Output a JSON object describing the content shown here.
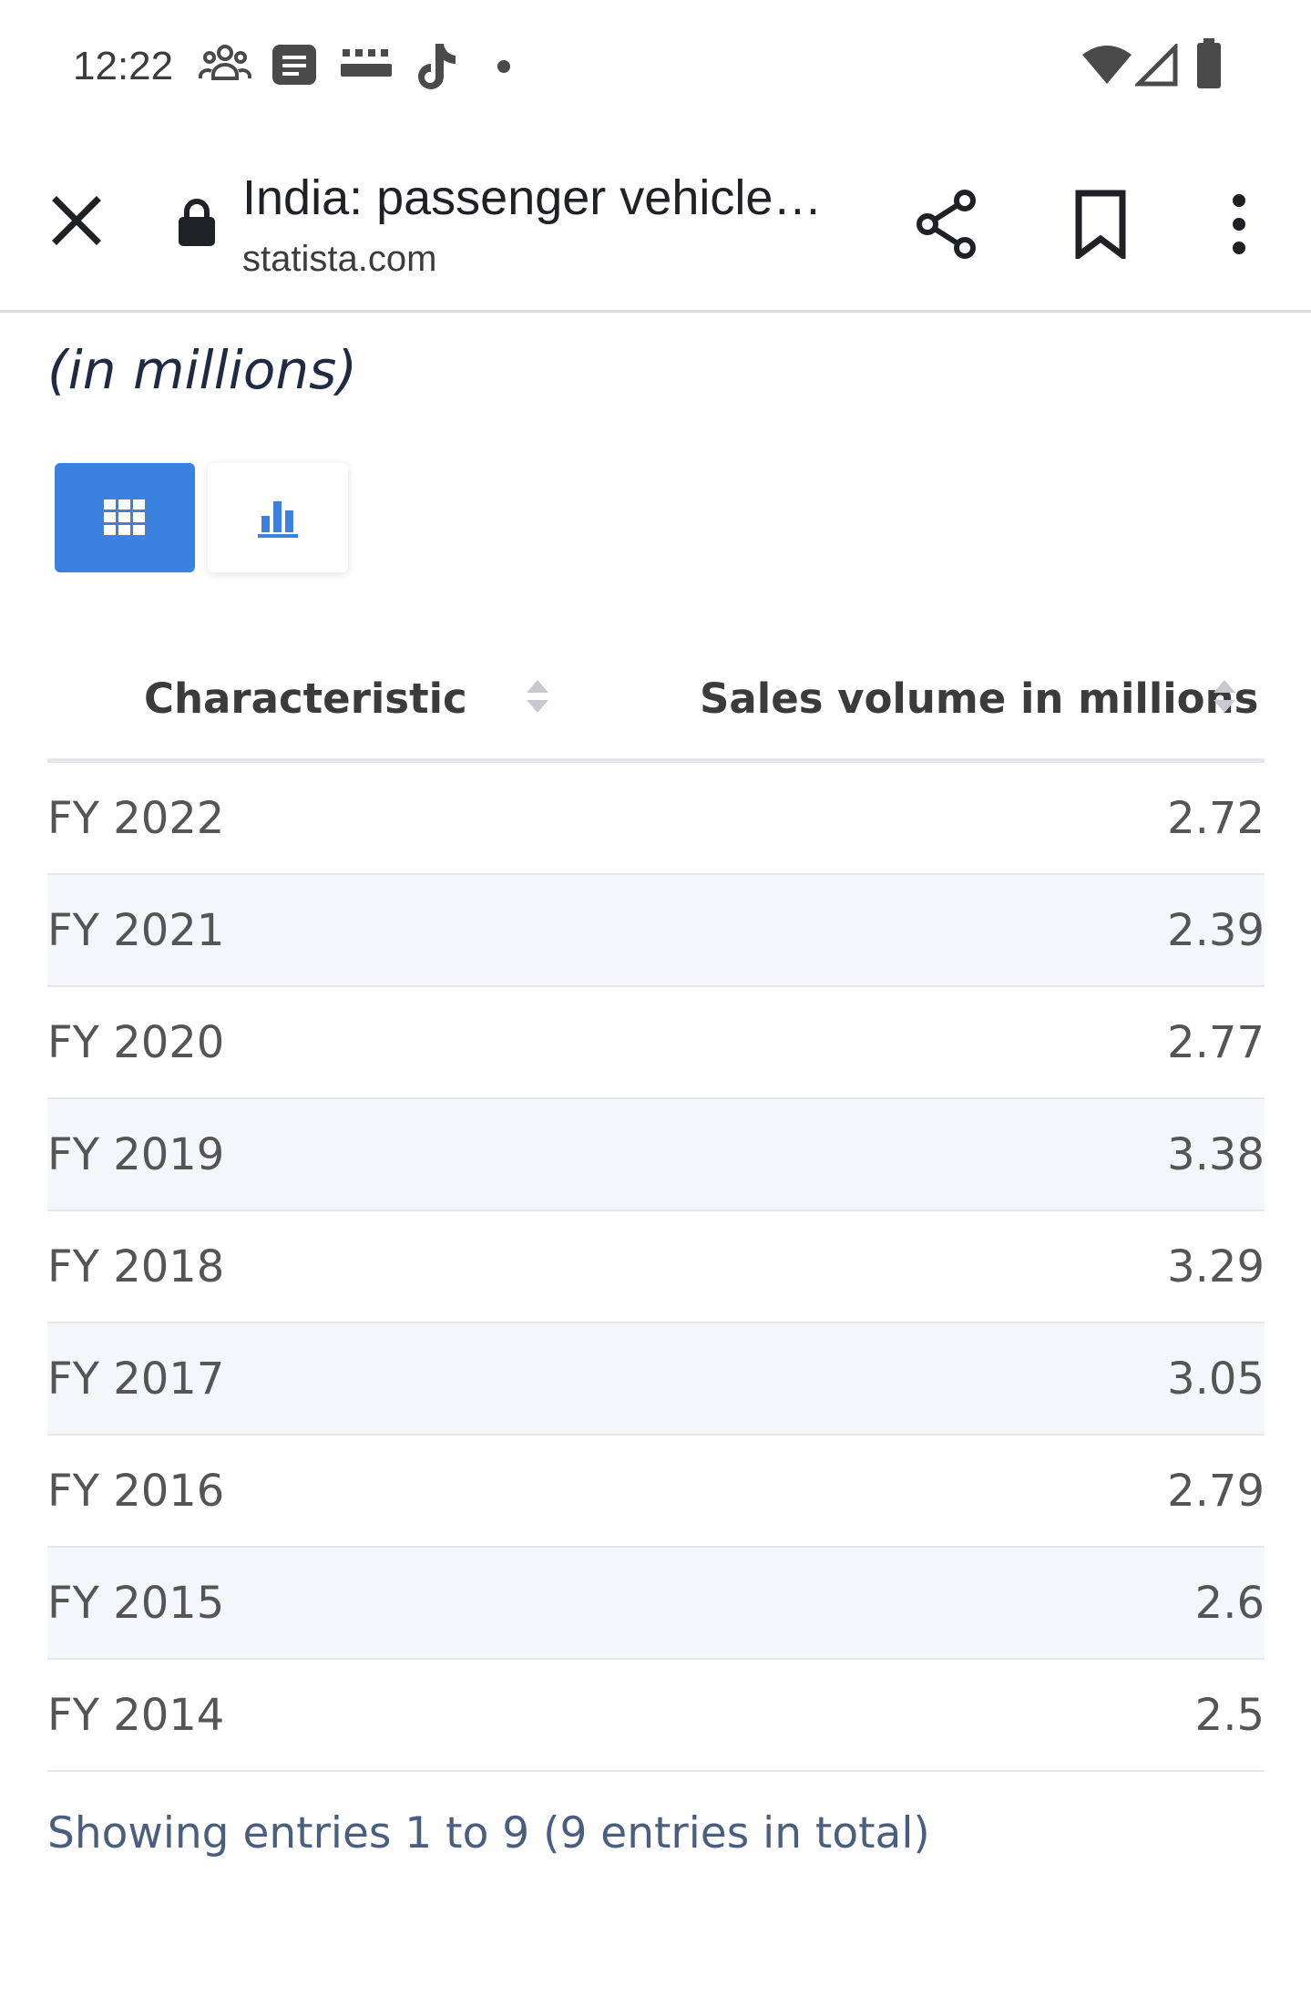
{
  "status_bar": {
    "time": "12:22",
    "notification_icons": [
      "people-icon",
      "message-icon",
      "temu-icon",
      "tiktok-icon",
      "dot-icon"
    ],
    "system_icons": [
      "wifi-icon",
      "signal-icon",
      "battery-icon"
    ]
  },
  "browser": {
    "page_title": "India: passenger vehicle…",
    "url": "statista.com",
    "icons": [
      "close-icon",
      "lock-icon",
      "share-icon",
      "bookmark-icon",
      "more-vert-icon"
    ]
  },
  "content": {
    "unit_label": "(in millions)",
    "view_toggle": {
      "active": "table",
      "icons": [
        "table-grid-icon",
        "bar-chart-icon"
      ],
      "active_color": "#3b82e0"
    },
    "table": {
      "columns": [
        "Characteristic",
        "Sales volume in millions"
      ],
      "rows": [
        [
          "FY 2022",
          "2.72"
        ],
        [
          "FY 2021",
          "2.39"
        ],
        [
          "FY 2020",
          "2.77"
        ],
        [
          "FY 2019",
          "3.38"
        ],
        [
          "FY 2018",
          "3.29"
        ],
        [
          "FY 2017",
          "3.05"
        ],
        [
          "FY 2016",
          "2.79"
        ],
        [
          "FY 2015",
          "2.6"
        ],
        [
          "FY 2014",
          "2.5"
        ]
      ]
    },
    "entries_info": "Showing entries 1 to 9 (9 entries in total)"
  }
}
